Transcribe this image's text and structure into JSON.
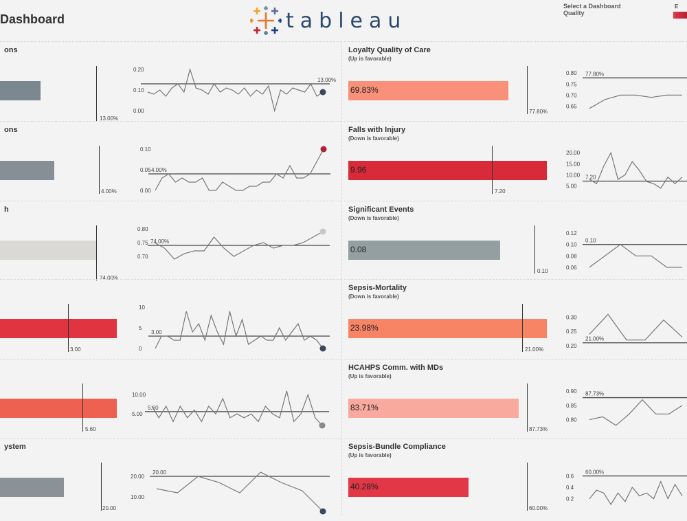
{
  "header": {
    "title": "Dashboard",
    "logo_word": "tableau",
    "select_label_1": "Select a Dashboard",
    "select_label_2": "Quality",
    "legend_label": "E"
  },
  "panels": [
    {
      "title": "ons",
      "subtitle": "",
      "value": "",
      "target_label": "13.00%",
      "bar_color": "#7c8890",
      "ticks": [
        "0.20",
        "0.10",
        "0.00"
      ],
      "target_tick": "13.00%",
      "spark": [
        0.09,
        0.08,
        0.1,
        0.07,
        0.11,
        0.13,
        0.09,
        0.2,
        0.11,
        0.1,
        0.08,
        0.13,
        0.09,
        0.11,
        0.1,
        0.08,
        0.11,
        0.07,
        0.1,
        0.08,
        0.12,
        0.0,
        0.1,
        0.08,
        0.11,
        0.1,
        0.09,
        0.13,
        0.07,
        0.09
      ],
      "yr": [
        0,
        0.2
      ],
      "target": 0.13,
      "endColor": "#3a4a5a"
    },
    {
      "title": "ons",
      "subtitle": "",
      "value": "",
      "target_label": "4.00%",
      "bar_color": "#878f96",
      "ticks": [
        "0.10",
        "0.05",
        "0.00"
      ],
      "target_tick": "4.00%",
      "spark": [
        0.0,
        0.03,
        0.04,
        0.02,
        0.03,
        0.02,
        0.02,
        0.03,
        0.0,
        0.0,
        0.02,
        0.01,
        0.0,
        0.0,
        0.01,
        0.01,
        0.02,
        0.02,
        0.04,
        0.03,
        0.06,
        0.03,
        0.03,
        0.04,
        0.07,
        0.1
      ],
      "yr": [
        0,
        0.1
      ],
      "target": 0.04,
      "endColor": "#b0213a"
    },
    {
      "title": "h",
      "subtitle": "",
      "value": "",
      "target_label": "74.00%",
      "bar_color": "#dbd9d6",
      "ticks": [
        "0.80",
        "0.75",
        "0.70"
      ],
      "target_tick": "74.00%",
      "spark": [
        0.75,
        0.73,
        0.69,
        0.71,
        0.72,
        0.72,
        0.77,
        0.73,
        0.7,
        0.72,
        0.74,
        0.75,
        0.73,
        0.74,
        0.74,
        0.75,
        0.77,
        0.79
      ],
      "yr": [
        0.68,
        0.8
      ],
      "target": 0.74,
      "endColor": "#c9c6c3"
    },
    {
      "title": "",
      "subtitle": "",
      "value": "",
      "target_label": "3.00",
      "bar_color": "#e03540",
      "ticks": [
        "10",
        "5",
        "0"
      ],
      "target_tick": "3.00",
      "spark": [
        0,
        3,
        3,
        2,
        2,
        9,
        4,
        6,
        2,
        8,
        4,
        1,
        9,
        3,
        7,
        1,
        2,
        3,
        2,
        2,
        5,
        2,
        4,
        6,
        2,
        3,
        2,
        0
      ],
      "yr": [
        0,
        10
      ],
      "target": 3,
      "endColor": "#3a4a5a"
    },
    {
      "title": "",
      "subtitle": "",
      "value": "",
      "target_label": "5.60",
      "bar_color": "#ee6150",
      "ticks": [
        "10.00",
        "5.00"
      ],
      "target_tick": "5.60",
      "spark": [
        7,
        4,
        7,
        3,
        7,
        4,
        6,
        3,
        7,
        5,
        9,
        4,
        5,
        4,
        5,
        3,
        7,
        5,
        4,
        11,
        3,
        5,
        10,
        4,
        2
      ],
      "yr": [
        2,
        12
      ],
      "target": 5.6,
      "endColor": "#8a8a8a"
    },
    {
      "title": "ystem",
      "subtitle": "",
      "value": "",
      "target_label": "20.00",
      "bar_color": "#8a9298",
      "ticks": [
        "20.00",
        "10.00"
      ],
      "target_tick": "20.00",
      "spark": [
        14,
        12,
        20,
        17,
        12,
        22,
        17,
        13,
        3
      ],
      "yr": [
        5,
        25
      ],
      "target": 20,
      "endColor": "#3a4a5a"
    },
    {
      "title": "Loyalty Quality of Care",
      "subtitle": "(Up is favorable)",
      "value": "69.83%",
      "target_label": "77.80%",
      "bar_color": "#f9917a",
      "ticks": [
        "0.80",
        "0.75",
        "0.70",
        "0.65"
      ],
      "target_tick": "77.80%",
      "spark": [
        0.64,
        0.68,
        0.7,
        0.7,
        0.69,
        0.7,
        0.7
      ],
      "yr": [
        0.63,
        0.81
      ],
      "target": 0.778,
      "endColor": ""
    },
    {
      "title": "Falls with Injury",
      "subtitle": "(Down is favorable)",
      "value": "9.96",
      "target_label": "7.20",
      "bar_color": "#d92a3a",
      "ticks": [
        "20.00",
        "15.00",
        "10.00",
        "5.00"
      ],
      "target_tick": "7.20",
      "spark": [
        8,
        6,
        14,
        20,
        8,
        10,
        16,
        12,
        7,
        6,
        4,
        9,
        6,
        9
      ],
      "yr": [
        3,
        21
      ],
      "target": 7.2,
      "endColor": ""
    },
    {
      "title": "Significant Events",
      "subtitle": "(Down is favorable)",
      "value": "0.08",
      "target_label": "0.10",
      "bar_color": "#949fa2",
      "ticks": [
        "0.12",
        "0.10",
        "0.08",
        "0.06"
      ],
      "target_tick": "0.10",
      "spark": [
        0.06,
        0.08,
        0.1,
        0.08,
        0.08,
        0.06,
        0.06
      ],
      "yr": [
        0.055,
        0.125
      ],
      "target": 0.1,
      "endColor": ""
    },
    {
      "title": "Sepsis-Mortality",
      "subtitle": "(Down is favorable)",
      "value": "23.98%",
      "target_label": "21.00%",
      "bar_color": "#f88466",
      "ticks": [
        "0.30",
        "0.25",
        "0.20"
      ],
      "target_tick": "21.00%",
      "spark": [
        0.24,
        0.31,
        0.22,
        0.22,
        0.29,
        0.23
      ],
      "yr": [
        0.19,
        0.33
      ],
      "target": 0.21,
      "endColor": ""
    },
    {
      "title": "HCAHPS Comm. with MDs",
      "subtitle": "(Up is favorable)",
      "value": "83.71%",
      "target_label": "87.73%",
      "bar_color": "#f9a99e",
      "ticks": [
        "0.90",
        "0.85",
        "0.80"
      ],
      "target_tick": "87.73%",
      "spark": [
        0.8,
        0.81,
        0.78,
        0.82,
        0.87,
        0.82,
        0.82,
        0.85
      ],
      "yr": [
        0.77,
        0.91
      ],
      "target": 0.8773,
      "endColor": ""
    },
    {
      "title": "Sepsis-Bundle Compliance",
      "subtitle": "(Up is favorable)",
      "value": "40.28%",
      "target_label": "60.00%",
      "bar_color": "#e23746",
      "ticks": [
        "0.6",
        "0.4",
        "0.2"
      ],
      "target_tick": "60.00%",
      "spark": [
        0.2,
        0.35,
        0.3,
        0.1,
        0.3,
        0.15,
        0.4,
        0.25,
        0.3,
        0.2,
        0.5,
        0.2,
        0.45,
        0.25
      ],
      "yr": [
        0.05,
        0.75
      ],
      "target": 0.6,
      "endColor": ""
    }
  ]
}
